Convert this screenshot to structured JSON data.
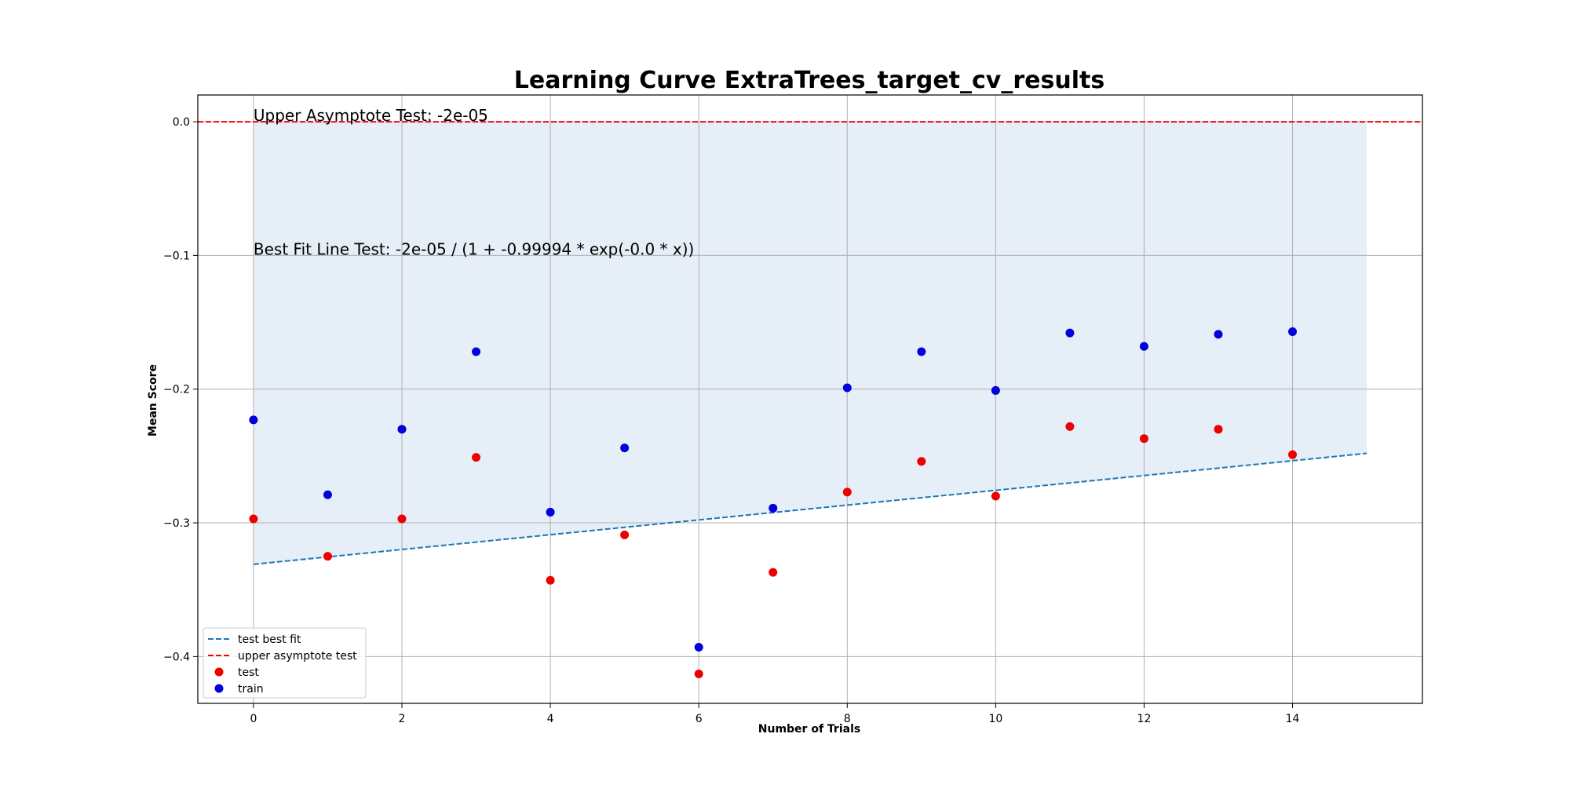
{
  "chart_data": {
    "type": "scatter",
    "title": "Learning Curve ExtraTrees_target_cv_results",
    "xlabel": "Number of Trials",
    "ylabel": "Mean Score",
    "xlim": [
      -0.75,
      15.75
    ],
    "ylim": [
      -0.435,
      0.02
    ],
    "x_ticks": [
      0,
      2,
      4,
      6,
      8,
      10,
      12,
      14
    ],
    "y_ticks": [
      0.0,
      -0.1,
      -0.2,
      -0.3,
      -0.4
    ],
    "x_tick_labels": [
      "0",
      "2",
      "4",
      "6",
      "8",
      "10",
      "12",
      "14"
    ],
    "y_tick_labels": [
      "0.0",
      "−0.1",
      "−0.2",
      "−0.3",
      "−0.4"
    ],
    "grid": true,
    "legend_position": "lower-left",
    "series": [
      {
        "name": "test",
        "kind": "scatter",
        "color": "#ee0000",
        "x": [
          0,
          1,
          2,
          3,
          4,
          5,
          6,
          7,
          8,
          9,
          10,
          11,
          12,
          13,
          14
        ],
        "y": [
          -0.297,
          -0.325,
          -0.297,
          -0.251,
          -0.343,
          -0.309,
          -0.413,
          -0.337,
          -0.277,
          -0.254,
          -0.28,
          -0.228,
          -0.237,
          -0.23,
          -0.249
        ]
      },
      {
        "name": "train",
        "kind": "scatter",
        "color": "#0000dd",
        "x": [
          0,
          1,
          2,
          3,
          4,
          5,
          6,
          7,
          8,
          9,
          10,
          11,
          12,
          13,
          14
        ],
        "y": [
          -0.223,
          -0.279,
          -0.23,
          -0.172,
          -0.292,
          -0.244,
          -0.393,
          -0.289,
          -0.199,
          -0.172,
          -0.201,
          -0.158,
          -0.168,
          -0.159,
          -0.157
        ]
      },
      {
        "name": "test best fit",
        "kind": "line",
        "style": "dashed",
        "color": "#1f77b4",
        "x": [
          0,
          15
        ],
        "y": [
          -0.331,
          -0.248
        ]
      },
      {
        "name": "upper asymptote test",
        "kind": "hline",
        "style": "dashed",
        "color": "#ff0000",
        "y": 0.0
      }
    ],
    "fill_region": {
      "color": "#e6eef7",
      "x": [
        0,
        15
      ],
      "upper": [
        0.0,
        0.0
      ],
      "lower": [
        -0.331,
        -0.248
      ]
    },
    "annotations": [
      {
        "text": "Upper Asymptote Test: -2e-05",
        "x": 0,
        "y": 0.0
      },
      {
        "text": "Best Fit Line Test: -2e-05 / (1 + -0.99994 * exp(-0.0 * x))",
        "x": 0,
        "y": -0.1
      }
    ]
  }
}
